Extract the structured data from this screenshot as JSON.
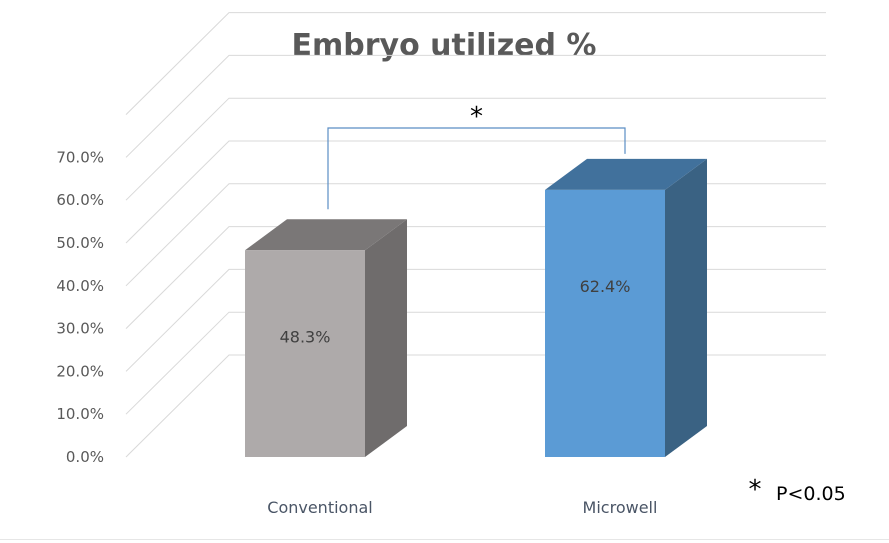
{
  "chart_data": {
    "type": "bar",
    "title": "Embryo utilized %",
    "categories": [
      "Conventional",
      "Microwell"
    ],
    "values": [
      48.3,
      62.4
    ],
    "data_labels": [
      "48.3%",
      "62.4%"
    ],
    "colors": {
      "Conventional": {
        "front": "#aeaaaa",
        "top": "#7a7777",
        "side": "#6f6c6c"
      },
      "Microwell": {
        "front": "#5b9bd5",
        "top": "#41719c",
        "side": "#3a6283"
      }
    },
    "y_ticks": [
      "0.0%",
      "10.0%",
      "20.0%",
      "30.0%",
      "40.0%",
      "50.0%",
      "60.0%",
      "70.0%"
    ],
    "ylim": [
      0,
      70
    ],
    "grid": true,
    "style": "3d-column",
    "significance": {
      "marker": "*",
      "between": [
        "Conventional",
        "Microwell"
      ]
    },
    "footnote": {
      "marker": "*",
      "text": "P<0.05"
    }
  }
}
